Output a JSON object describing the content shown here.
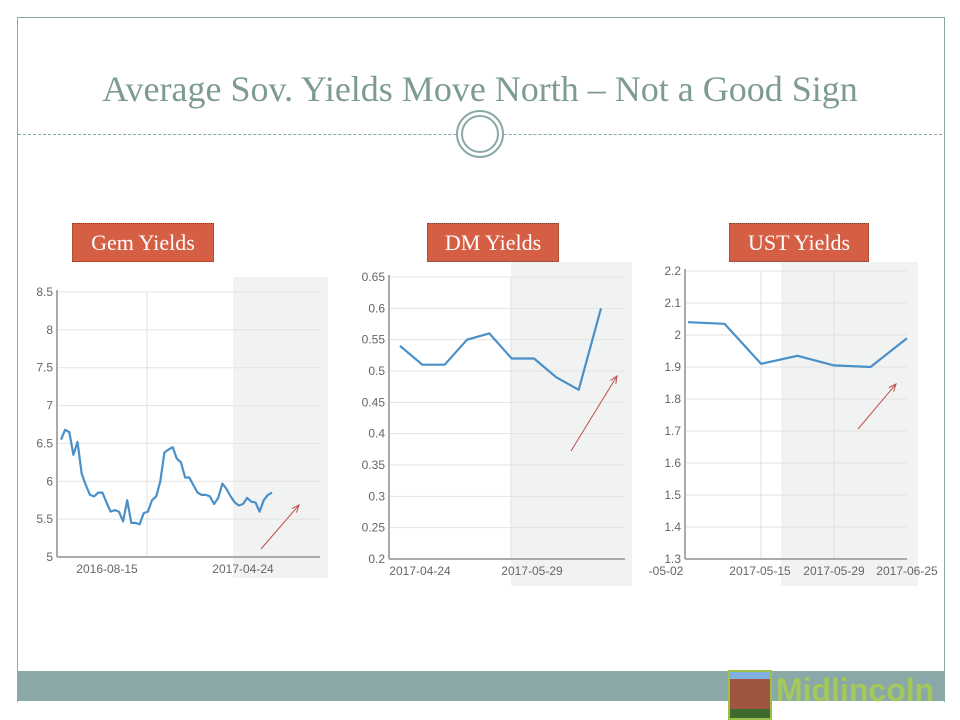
{
  "title": "Average Sov. Yields Move North – Not a Good Sign",
  "brand": "Midlincoln",
  "colors": {
    "line": "#4a90c8",
    "arrow": "#c0504d",
    "label_bg": "#d55f45",
    "band": "#8aa8a8"
  },
  "chart_data": [
    {
      "type": "line",
      "title": "Gem Yields",
      "ylim": [
        5,
        8.5
      ],
      "yticks": [
        "8.5",
        "8",
        "7.5",
        "7",
        "6.5",
        "6",
        "5.5",
        "5"
      ],
      "xtick_labels": [
        "2016-08-15",
        "2017-04-24"
      ],
      "grid": true,
      "shaded_region": "recent period",
      "trend_arrow": "up",
      "values": [
        6.55,
        6.68,
        6.65,
        6.35,
        6.52,
        6.1,
        5.95,
        5.82,
        5.8,
        5.85,
        5.85,
        5.72,
        5.6,
        5.62,
        5.6,
        5.47,
        5.75,
        5.45,
        5.45,
        5.43,
        5.58,
        5.6,
        5.75,
        5.8,
        6.0,
        6.38,
        6.42,
        6.45,
        6.3,
        6.25,
        6.05,
        6.05,
        5.95,
        5.85,
        5.82,
        5.82,
        5.8,
        5.7,
        5.78,
        5.97,
        5.9,
        5.8,
        5.72,
        5.68,
        5.7,
        5.78,
        5.73,
        5.72,
        5.6,
        5.75,
        5.82,
        5.85
      ]
    },
    {
      "type": "line",
      "title": "DM Yields",
      "ylim": [
        0.2,
        0.65
      ],
      "yticks": [
        "0.65",
        "0.6",
        "0.55",
        "0.5",
        "0.45",
        "0.4",
        "0.35",
        "0.3",
        "0.25",
        "0.2"
      ],
      "xtick_labels": [
        "2017-04-24",
        "2017-05-29"
      ],
      "grid": true,
      "shaded_region": "recent period",
      "trend_arrow": "up",
      "values": [
        0.54,
        0.51,
        0.51,
        0.55,
        0.56,
        0.52,
        0.52,
        0.49,
        0.47,
        0.6
      ]
    },
    {
      "type": "line",
      "title": "UST Yields",
      "ylim": [
        1.3,
        2.2
      ],
      "yticks": [
        "2.2",
        "2.1",
        "2",
        "1.9",
        "1.8",
        "1.7",
        "1.6",
        "1.5",
        "1.4",
        "1.3"
      ],
      "xtick_labels": [
        "-05-02",
        "2017-05-15",
        "2017-05-29",
        "2017-06-25"
      ],
      "grid": true,
      "shaded_region": "recent period",
      "trend_arrow": "up",
      "values": [
        2.04,
        2.035,
        1.91,
        1.935,
        1.905,
        1.9,
        1.99
      ]
    }
  ]
}
